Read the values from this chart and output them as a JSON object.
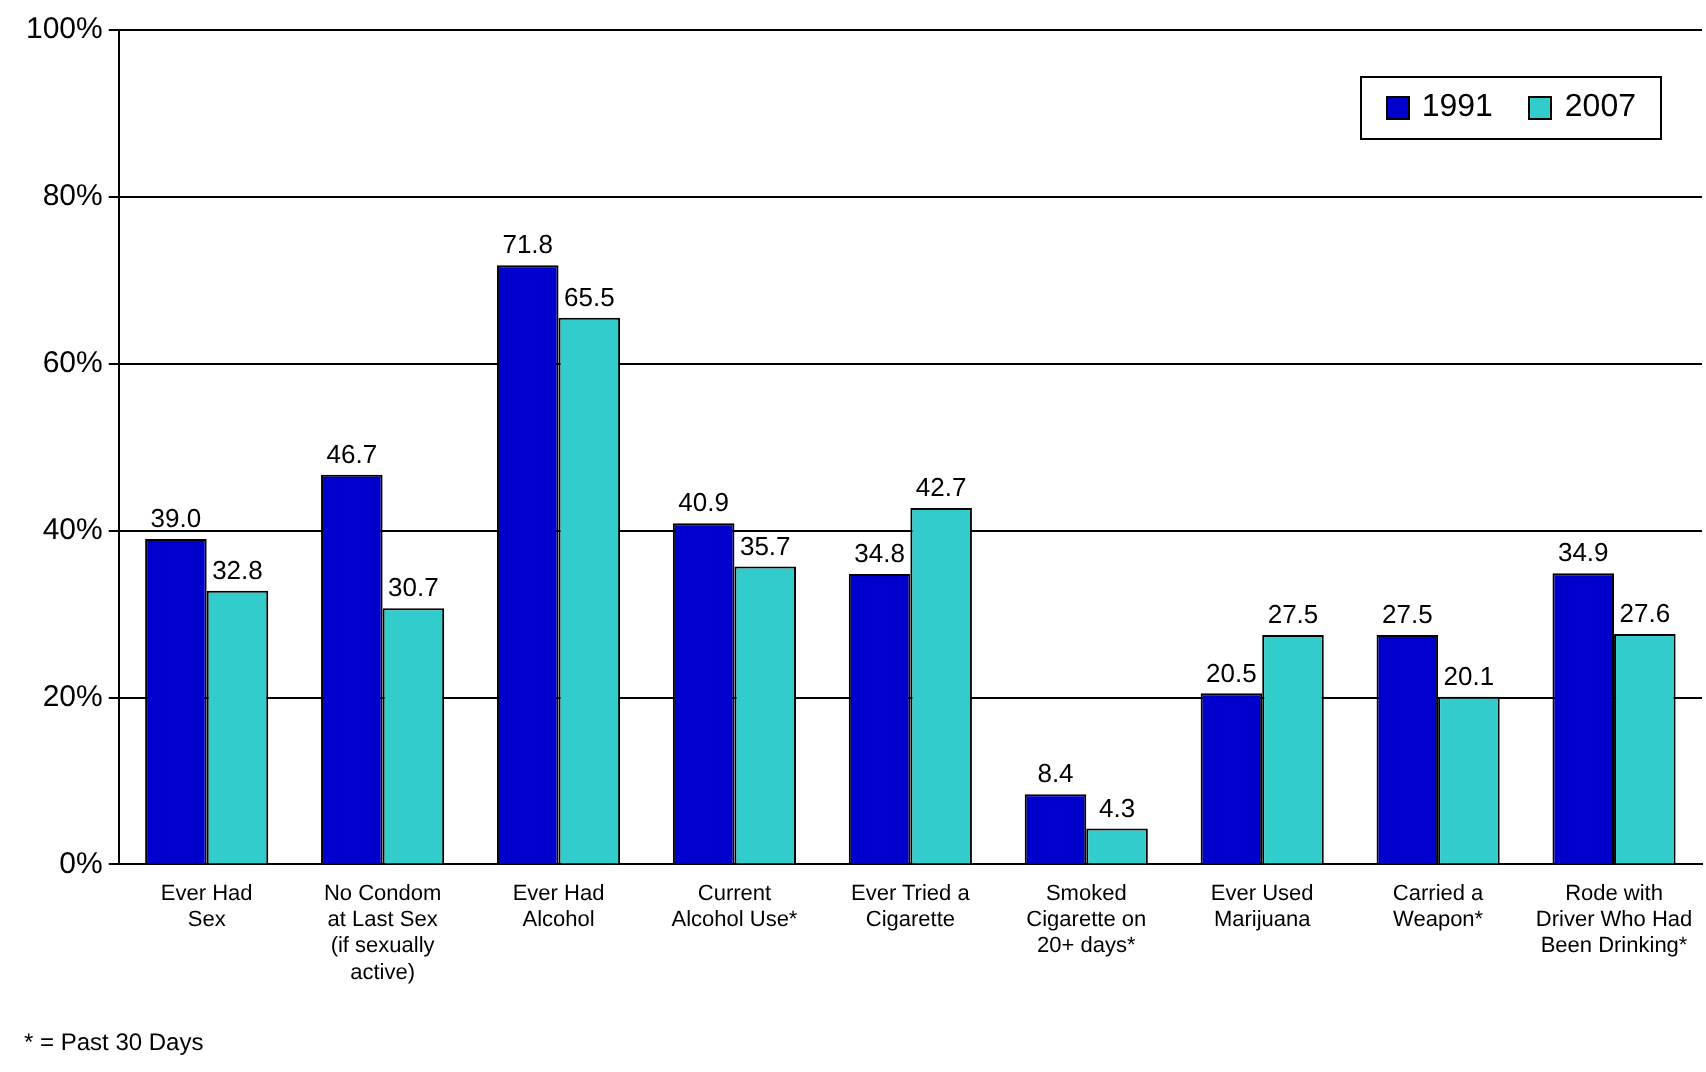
{
  "chart_data": {
    "type": "bar",
    "categories": [
      "Ever Had\nSex",
      "No Condom\nat Last Sex\n(if sexually\nactive)",
      "Ever Had\nAlcohol",
      "Current\nAlcohol Use*",
      "Ever Tried a\nCigarette",
      "Smoked\nCigarette on\n20+ days*",
      "Ever Used\nMarijuana",
      "Carried a\nWeapon*",
      "Rode with\nDriver Who Had\nBeen Drinking*"
    ],
    "series": [
      {
        "name": "1991",
        "color": "#0000cc",
        "values": [
          39.0,
          46.7,
          71.8,
          40.9,
          34.8,
          8.4,
          20.5,
          27.5,
          34.9
        ],
        "value_labels": [
          "39.0",
          "46.7",
          "71.8",
          "40.9",
          "34.8",
          "8.4",
          "20.5",
          "27.5",
          "34.9"
        ]
      },
      {
        "name": "2007",
        "color": "#33cccc",
        "values": [
          32.8,
          30.7,
          65.5,
          35.7,
          42.7,
          4.3,
          27.5,
          20.1,
          27.6
        ],
        "value_labels": [
          "32.8",
          "30.7",
          "65.5",
          "35.7",
          "42.7",
          "4.3",
          "27.5",
          "20.1",
          "27.6"
        ]
      }
    ],
    "ylim": [
      0,
      100
    ],
    "yticks": [
      {
        "value": 0,
        "label": "0%"
      },
      {
        "value": 20,
        "label": "20%"
      },
      {
        "value": 40,
        "label": "40%"
      },
      {
        "value": 60,
        "label": "60%"
      },
      {
        "value": 80,
        "label": "80%"
      },
      {
        "value": 100,
        "label": "100%"
      }
    ],
    "grid": "y",
    "legend": "top right",
    "annotations": [
      "* = Past 30 Days"
    ]
  }
}
